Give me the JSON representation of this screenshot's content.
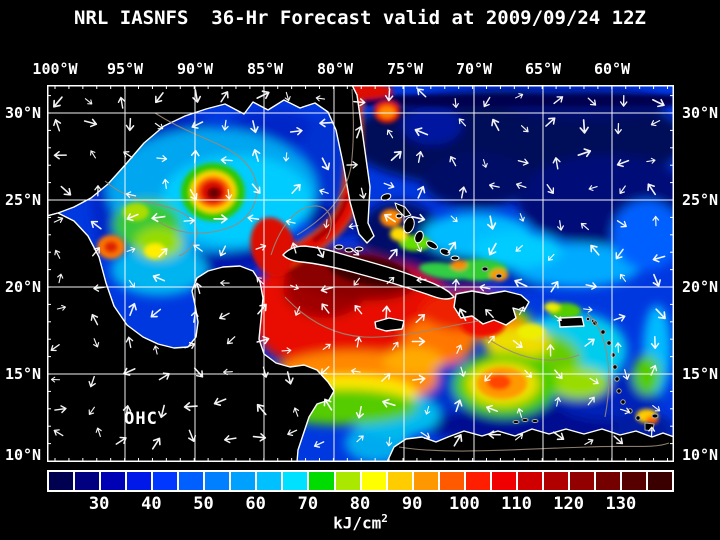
{
  "title": "NRL IASNFS  36-Hr Forecast valid at 2009/09/24 12Z",
  "map": {
    "overlay_label": "OHC"
  },
  "axes": {
    "lon": [
      "100°W",
      "95°W",
      "90°W",
      "85°W",
      "80°W",
      "75°W",
      "70°W",
      "65°W",
      "60°W"
    ],
    "lat": [
      "30°N",
      "25°N",
      "20°N",
      "15°N",
      "10°N"
    ]
  },
  "colorbar": {
    "unit": "kJ/cm",
    "unit_sup": "2",
    "min": 20,
    "max": 140,
    "step": 5,
    "tick_labels": [
      "30",
      "40",
      "50",
      "60",
      "70",
      "80",
      "90",
      "100",
      "110",
      "120",
      "130"
    ],
    "colors": [
      "#000050",
      "#000080",
      "#0000B4",
      "#0018E8",
      "#0038FF",
      "#0060FF",
      "#0080FF",
      "#00A0FF",
      "#00C0FF",
      "#00E0FF",
      "#00DC00",
      "#AAE800",
      "#FFFF00",
      "#FFCC00",
      "#FF9800",
      "#FF5A00",
      "#FF1E00",
      "#F00000",
      "#D00000",
      "#B00000",
      "#920000",
      "#740000",
      "#560000",
      "#3A0000"
    ]
  },
  "chart_data": {
    "type": "heatmap",
    "title": "NRL IASNFS  36-Hr Forecast valid at 2009/09/24 12Z",
    "model": "NRL IASNFS",
    "forecast": "36-Hr Forecast",
    "valid_time": "2009/09/24 12Z",
    "variable": "OHC",
    "unit": "kJ/cm²",
    "x_ticks": [
      "100°W",
      "95°W",
      "90°W",
      "85°W",
      "80°W",
      "75°W",
      "70°W",
      "65°W",
      "60°W"
    ],
    "y_ticks": [
      "30°N",
      "25°N",
      "20°N",
      "15°N",
      "10°N"
    ],
    "x_range_deg_west": [
      100.6,
      56.0
    ],
    "y_range_deg_north": [
      10.0,
      31.6
    ],
    "grid": "white 5-degree graticule",
    "overlays": [
      "white surface-current vector arrows",
      "gray frontal contour lines",
      "black land mask with white coastlines"
    ],
    "colorbar": {
      "min": 20,
      "max": 140,
      "step": 5,
      "position": "bottom",
      "ticks": [
        30,
        40,
        50,
        60,
        70,
        80,
        90,
        100,
        110,
        120,
        130
      ],
      "colors": [
        "#000050",
        "#000080",
        "#0000B4",
        "#0018E8",
        "#0038FF",
        "#0060FF",
        "#0080FF",
        "#00A0FF",
        "#00C0FF",
        "#00E0FF",
        "#00DC00",
        "#AAE800",
        "#FFFF00",
        "#FFCC00",
        "#FF9800",
        "#FF5A00",
        "#FF1E00",
        "#F00000",
        "#D00000",
        "#B00000",
        "#920000",
        "#740000",
        "#560000",
        "#3A0000"
      ]
    },
    "features": [
      {
        "name": "Warm-core eddy, central Gulf of Mexico",
        "approx_lon": "-87",
        "approx_lat": "24.5",
        "value_kJ_cm2": "110-125 core with green-yellow ring"
      },
      {
        "name": "Loop Current / Florida Straits / Gulf Stream band",
        "approx": "Yucatan Channel along N Cuba through Florida Straits, north along Florida east coast to 31N",
        "value_kJ_cm2": "100-125"
      },
      {
        "name": "NW Caribbean hot pool south of Cuba",
        "approx": "86W-74W, 17N-22N",
        "value_kJ_cm2": ">130 dark-red core"
      },
      {
        "name": "Warm eddy, central Caribbean",
        "approx_lon": "-75.5",
        "approx_lat": "14.5",
        "value_kJ_cm2": "95-105"
      },
      {
        "name": "Warm patches south of Hispaniola and near Tampico, Mexico",
        "value_kJ_cm2": "90-105"
      },
      {
        "name": "Western Gulf green-yellow patches",
        "value_kJ_cm2": "70-85"
      },
      {
        "name": "Eastern Caribbean",
        "value_kJ_cm2": "60-90 cyan-green"
      },
      {
        "name": "Shelves: Texas-Louisiana, Campeche Bank, Bahama Banks, Venezuela coast",
        "value_kJ_cm2": "<45 navy"
      },
      {
        "name": "Atlantic north of 26N",
        "value_kJ_cm2": "30-55 with mesoscale swirls"
      }
    ]
  }
}
